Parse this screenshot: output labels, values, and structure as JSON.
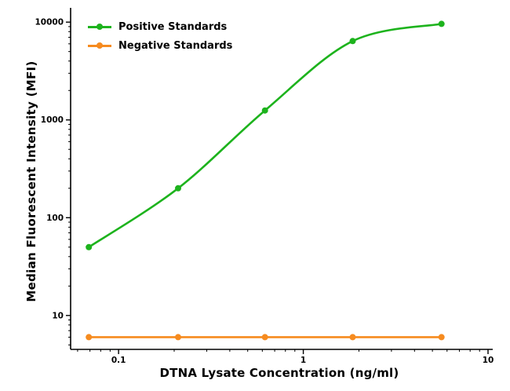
{
  "chart_data": {
    "type": "line",
    "title": "",
    "xlabel": "DTNA Lysate Concentration (ng/ml)",
    "ylabel": "Median Fluorescent Intensity (MFI)",
    "x_scale": "log",
    "y_scale": "log",
    "xlim": [
      0.055,
      10
    ],
    "ylim": [
      4.5,
      13000
    ],
    "x_ticks": [
      0.1,
      1,
      10
    ],
    "x_tick_labels": [
      "0.1",
      "1",
      "10"
    ],
    "y_ticks": [
      10,
      100,
      1000,
      10000
    ],
    "y_tick_labels": [
      "10",
      "100",
      "1000",
      "10000"
    ],
    "grid": false,
    "legend_position": "top-left",
    "axis_color": "#000000",
    "series": [
      {
        "name": "Positive Standards",
        "color": "#1db31d",
        "x": [
          0.069,
          0.21,
          0.62,
          1.85,
          5.6
        ],
        "y": [
          50,
          200,
          1250,
          6400,
          9600
        ]
      },
      {
        "name": "Negative Standards",
        "color": "#f68b1f",
        "x": [
          0.069,
          0.21,
          0.62,
          1.85,
          5.6
        ],
        "y": [
          6,
          6,
          6,
          6,
          6
        ]
      }
    ]
  }
}
